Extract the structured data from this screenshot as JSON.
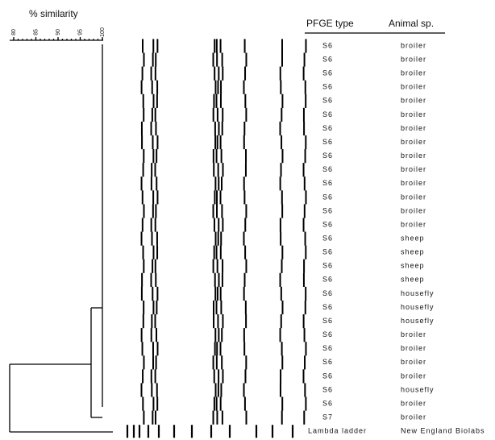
{
  "scale": {
    "title": "% similarity",
    "ticks": [
      "80",
      "85",
      "90",
      "95",
      "100"
    ]
  },
  "table": {
    "headers": [
      "PFGE type",
      "Animal sp."
    ],
    "rows": [
      [
        "S6",
        "broiler"
      ],
      [
        "S6",
        "broiler"
      ],
      [
        "S6",
        "broiler"
      ],
      [
        "S6",
        "broiler"
      ],
      [
        "S6",
        "broiler"
      ],
      [
        "S6",
        "broiler"
      ],
      [
        "S6",
        "broiler"
      ],
      [
        "S6",
        "broiler"
      ],
      [
        "S6",
        "broiler"
      ],
      [
        "S6",
        "broiler"
      ],
      [
        "S6",
        "broiler"
      ],
      [
        "S6",
        "broiler"
      ],
      [
        "S6",
        "broiler"
      ],
      [
        "S6",
        "broiler"
      ],
      [
        "S6",
        "sheep"
      ],
      [
        "S6",
        "sheep"
      ],
      [
        "S6",
        "sheep"
      ],
      [
        "S6",
        "sheep"
      ],
      [
        "S6",
        "housefly"
      ],
      [
        "S6",
        "housefly"
      ],
      [
        "S6",
        "housefly"
      ],
      [
        "S6",
        "broiler"
      ],
      [
        "S6",
        "broiler"
      ],
      [
        "S6",
        "broiler"
      ],
      [
        "S6",
        "broiler"
      ],
      [
        "S6",
        "housefly"
      ],
      [
        "S6",
        "broiler"
      ],
      [
        "S7",
        "broiler"
      ],
      [
        "Lambda ladder",
        "New England Biolabs"
      ]
    ]
  }
}
